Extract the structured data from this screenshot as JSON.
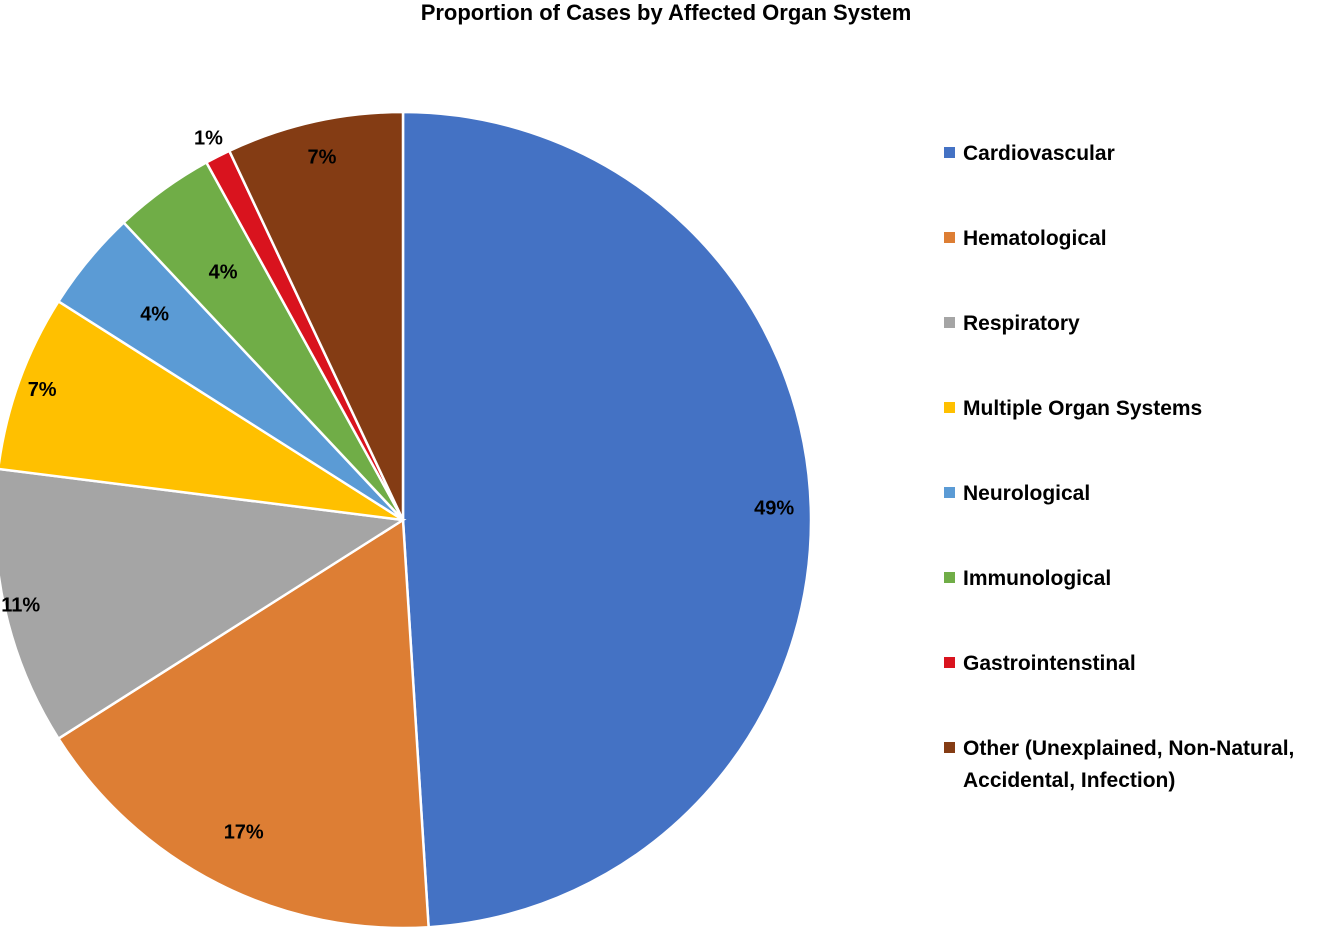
{
  "chart_data": {
    "type": "pie",
    "title": "Proportion of Cases by Affected Organ System",
    "legend_position": "right",
    "series": [
      {
        "name": "Cardiovascular",
        "value": 49,
        "label": "49%",
        "color": "#4472C4"
      },
      {
        "name": "Hematological",
        "value": 17,
        "label": "17%",
        "color": "#DD7E34"
      },
      {
        "name": "Respiratory",
        "value": 11,
        "label": "11%",
        "color": "#A5A5A5"
      },
      {
        "name": "Multiple Organ Systems",
        "value": 7,
        "label": "7%",
        "color": "#FFC000"
      },
      {
        "name": "Neurological",
        "value": 4,
        "label": "4%",
        "color": "#5B9BD5"
      },
      {
        "name": "Immunological",
        "value": 4,
        "label": "4%",
        "color": "#70AD47"
      },
      {
        "name": "Gastrointenstinal",
        "value": 1,
        "label": "1%",
        "color": "#D9131E"
      },
      {
        "name": "Other (Unexplained, Non-Natural, Accidental, Infection)",
        "value": 7,
        "label": "7%",
        "color": "#843C14"
      }
    ]
  }
}
